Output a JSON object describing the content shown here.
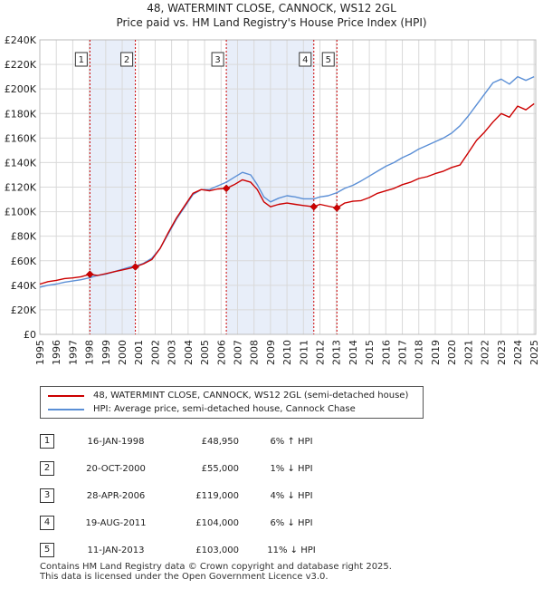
{
  "title_line1": "48, WATERMINT CLOSE, CANNOCK, WS12 2GL",
  "title_line2": "Price paid vs. HM Land Registry's House Price Index (HPI)",
  "colors": {
    "property": "#cc0000",
    "hpi": "#5b8fd6",
    "shade": "#e8eef9",
    "vline": "#cc0000"
  },
  "chart_data": {
    "type": "line",
    "xlim": [
      1995,
      2025.1
    ],
    "ylim": [
      0,
      240000
    ],
    "y_ticks": [
      0,
      20000,
      40000,
      60000,
      80000,
      100000,
      120000,
      140000,
      160000,
      180000,
      200000,
      220000,
      240000
    ],
    "y_tick_labels": [
      "£0",
      "£20K",
      "£40K",
      "£60K",
      "£80K",
      "£100K",
      "£120K",
      "£140K",
      "£160K",
      "£180K",
      "£200K",
      "£220K",
      "£240K"
    ],
    "x_ticks": [
      1995,
      1996,
      1997,
      1998,
      1999,
      2000,
      2001,
      2002,
      2003,
      2004,
      2005,
      2006,
      2007,
      2008,
      2009,
      2010,
      2011,
      2012,
      2013,
      2014,
      2015,
      2016,
      2017,
      2018,
      2019,
      2020,
      2021,
      2022,
      2023,
      2024,
      2025
    ],
    "x_tick_labels": [
      "1995",
      "1996",
      "1997",
      "1998",
      "1999",
      "2000",
      "2001",
      "2002",
      "2003",
      "2004",
      "2005",
      "2006",
      "2007",
      "2008",
      "2009",
      "2010",
      "2011",
      "2012",
      "2013",
      "2014",
      "2015",
      "2016",
      "2017",
      "2018",
      "2019",
      "2020",
      "2021",
      "2022",
      "2023",
      "2024",
      "2025"
    ],
    "grid": true,
    "shaded_spans": [
      [
        1998.04,
        2000.8
      ],
      [
        2006.32,
        2011.63
      ]
    ],
    "series": [
      {
        "name": "48, WATERMINT CLOSE, CANNOCK, WS12 2GL (semi-detached house)",
        "color": "#cc0000",
        "x": [
          1995.0,
          1995.5,
          1996.0,
          1996.5,
          1997.0,
          1997.5,
          1998.04,
          1998.5,
          1999.0,
          1999.5,
          2000.0,
          2000.5,
          2000.8,
          2001.3,
          2001.8,
          2002.3,
          2002.8,
          2003.3,
          2003.8,
          2004.3,
          2004.8,
          2005.3,
          2005.8,
          2006.32,
          2006.8,
          2007.3,
          2007.8,
          2008.2,
          2008.6,
          2009.0,
          2009.5,
          2010.0,
          2010.5,
          2011.0,
          2011.63,
          2012.0,
          2012.5,
          2013.03,
          2013.5,
          2014.0,
          2014.5,
          2015.0,
          2015.5,
          2016.0,
          2016.5,
          2017.0,
          2017.5,
          2018.0,
          2018.5,
          2019.0,
          2019.5,
          2020.0,
          2020.5,
          2021.0,
          2021.5,
          2022.0,
          2022.5,
          2023.0,
          2023.5,
          2024.0,
          2024.5,
          2025.0
        ],
        "y": [
          41000,
          43000,
          44000,
          45500,
          46000,
          47000,
          48950,
          48000,
          49500,
          51000,
          52500,
          54000,
          55000,
          57500,
          61000,
          70000,
          83000,
          95000,
          105000,
          115000,
          118000,
          117000,
          118500,
          119000,
          122000,
          126000,
          124000,
          118000,
          108000,
          104000,
          106000,
          107000,
          106000,
          105000,
          104000,
          106000,
          104500,
          103000,
          107000,
          108500,
          109000,
          111500,
          115000,
          117000,
          119000,
          122000,
          124000,
          127000,
          128500,
          131000,
          133000,
          136000,
          138000,
          148000,
          158000,
          165000,
          173000,
          180000,
          177000,
          186000,
          183000,
          188000
        ]
      },
      {
        "name": "HPI: Average price, semi-detached house, Cannock Chase",
        "color": "#5b8fd6",
        "x": [
          1995.0,
          1995.5,
          1996.0,
          1996.5,
          1997.0,
          1997.5,
          1998.04,
          1998.5,
          1999.0,
          1999.5,
          2000.0,
          2000.5,
          2000.8,
          2001.3,
          2001.8,
          2002.3,
          2002.8,
          2003.3,
          2003.8,
          2004.3,
          2004.8,
          2005.3,
          2005.8,
          2006.32,
          2006.8,
          2007.3,
          2007.8,
          2008.2,
          2008.6,
          2009.0,
          2009.5,
          2010.0,
          2010.5,
          2011.0,
          2011.63,
          2012.0,
          2012.5,
          2013.03,
          2013.5,
          2014.0,
          2014.5,
          2015.0,
          2015.5,
          2016.0,
          2016.5,
          2017.0,
          2017.5,
          2018.0,
          2018.5,
          2019.0,
          2019.5,
          2020.0,
          2020.5,
          2021.0,
          2021.5,
          2022.0,
          2022.5,
          2023.0,
          2023.5,
          2024.0,
          2024.5,
          2025.0
        ],
        "y": [
          38500,
          40000,
          41000,
          42500,
          43500,
          44500,
          46200,
          48000,
          49000,
          51000,
          53000,
          55000,
          55500,
          58000,
          62000,
          70000,
          82000,
          94000,
          104000,
          114000,
          118000,
          118000,
          121000,
          124000,
          128000,
          132000,
          130000,
          122000,
          112000,
          108000,
          111000,
          113000,
          112000,
          110500,
          110500,
          112000,
          113000,
          115500,
          119000,
          121500,
          125000,
          129000,
          133000,
          137000,
          140000,
          144000,
          147000,
          151000,
          154000,
          157000,
          160000,
          164000,
          170000,
          178000,
          187000,
          196000,
          205000,
          208000,
          204000,
          210000,
          207000,
          210000
        ]
      }
    ],
    "sales": [
      {
        "label": "1",
        "x": 1998.04,
        "y": 48950
      },
      {
        "label": "2",
        "x": 2000.8,
        "y": 55000
      },
      {
        "label": "3",
        "x": 2006.32,
        "y": 119000
      },
      {
        "label": "4",
        "x": 2011.63,
        "y": 104000
      },
      {
        "label": "5",
        "x": 2013.03,
        "y": 103000
      }
    ]
  },
  "legend": {
    "property": "48, WATERMINT CLOSE, CANNOCK, WS12 2GL (semi-detached house)",
    "hpi": "HPI: Average price, semi-detached house, Cannock Chase"
  },
  "transactions": [
    {
      "num": "1",
      "date": "16-JAN-1998",
      "price": "£48,950",
      "hpi": "6% ↑ HPI"
    },
    {
      "num": "2",
      "date": "20-OCT-2000",
      "price": "£55,000",
      "hpi": "1% ↓ HPI"
    },
    {
      "num": "3",
      "date": "28-APR-2006",
      "price": "£119,000",
      "hpi": "4% ↓ HPI"
    },
    {
      "num": "4",
      "date": "19-AUG-2011",
      "price": "£104,000",
      "hpi": "6% ↓ HPI"
    },
    {
      "num": "5",
      "date": "11-JAN-2013",
      "price": "£103,000",
      "hpi": "11% ↓ HPI"
    }
  ],
  "footer": {
    "line1": "Contains HM Land Registry data © Crown copyright and database right 2025.",
    "line2": "This data is licensed under the Open Government Licence v3.0."
  }
}
